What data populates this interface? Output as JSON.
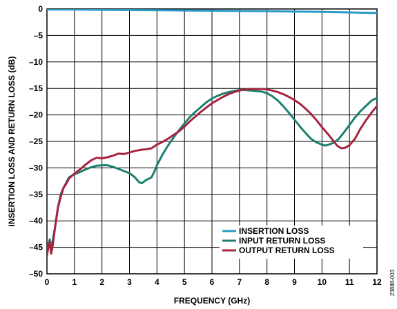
{
  "chart_data": {
    "type": "line",
    "xlabel": "FREQUENCY (GHz)",
    "ylabel": "INSERTION LOSS AND RETURN LOSS (dB)",
    "xlim": [
      0,
      12
    ],
    "ylim": [
      -50,
      0
    ],
    "x_ticks": [
      "0",
      "1",
      "2",
      "3",
      "4",
      "5",
      "6",
      "7",
      "8",
      "9",
      "10",
      "11",
      "12"
    ],
    "y_ticks": [
      "0",
      "–5",
      "–10",
      "–15",
      "–20",
      "–25",
      "–30",
      "–35",
      "–40",
      "–45",
      "–50"
    ],
    "grid": true,
    "legend_position": "bottom-right",
    "figure_id": "23888-003",
    "series": [
      {
        "name": "INSERTION LOSS",
        "color": "#2a9bc4",
        "points": [
          [
            0,
            -0.1
          ],
          [
            1,
            -0.12
          ],
          [
            2,
            -0.15
          ],
          [
            3,
            -0.2
          ],
          [
            4,
            -0.22
          ],
          [
            5,
            -0.28
          ],
          [
            6,
            -0.32
          ],
          [
            7,
            -0.38
          ],
          [
            8,
            -0.42
          ],
          [
            9,
            -0.48
          ],
          [
            10,
            -0.55
          ],
          [
            11,
            -0.65
          ],
          [
            11.5,
            -0.72
          ],
          [
            12,
            -0.75
          ]
        ]
      },
      {
        "name": "INPUT RETURN LOSS",
        "color": "#1d7f6e",
        "points": [
          [
            0,
            -46
          ],
          [
            0.05,
            -44.5
          ],
          [
            0.1,
            -43.5
          ],
          [
            0.15,
            -45
          ],
          [
            0.2,
            -44
          ],
          [
            0.3,
            -41
          ],
          [
            0.4,
            -37.5
          ],
          [
            0.5,
            -35
          ],
          [
            0.6,
            -33.8
          ],
          [
            0.7,
            -32.8
          ],
          [
            0.8,
            -31.8
          ],
          [
            1.0,
            -31.2
          ],
          [
            1.2,
            -30.8
          ],
          [
            1.4,
            -30.3
          ],
          [
            1.6,
            -29.9
          ],
          [
            1.8,
            -29.6
          ],
          [
            2.0,
            -29.5
          ],
          [
            2.2,
            -29.5
          ],
          [
            2.4,
            -29.8
          ],
          [
            2.6,
            -30.2
          ],
          [
            2.8,
            -30.6
          ],
          [
            3.0,
            -31.0
          ],
          [
            3.2,
            -31.8
          ],
          [
            3.35,
            -32.7
          ],
          [
            3.45,
            -32.9
          ],
          [
            3.6,
            -32.3
          ],
          [
            3.8,
            -31.8
          ],
          [
            3.9,
            -30.8
          ],
          [
            4.0,
            -29.5
          ],
          [
            4.2,
            -27.5
          ],
          [
            4.4,
            -25.8
          ],
          [
            4.6,
            -24.3
          ],
          [
            4.8,
            -22.9
          ],
          [
            5.0,
            -21.6
          ],
          [
            5.2,
            -20.4
          ],
          [
            5.4,
            -19.4
          ],
          [
            5.6,
            -18.5
          ],
          [
            5.8,
            -17.6
          ],
          [
            6.0,
            -16.9
          ],
          [
            6.2,
            -16.4
          ],
          [
            6.4,
            -16.0
          ],
          [
            6.6,
            -15.7
          ],
          [
            6.8,
            -15.5
          ],
          [
            7.0,
            -15.3
          ],
          [
            7.2,
            -15.3
          ],
          [
            7.4,
            -15.4
          ],
          [
            7.6,
            -15.5
          ],
          [
            7.8,
            -15.6
          ],
          [
            8.0,
            -15.9
          ],
          [
            8.2,
            -16.5
          ],
          [
            8.4,
            -17.3
          ],
          [
            8.6,
            -18.4
          ],
          [
            8.8,
            -19.6
          ],
          [
            9.0,
            -20.9
          ],
          [
            9.2,
            -22.2
          ],
          [
            9.4,
            -23.4
          ],
          [
            9.6,
            -24.5
          ],
          [
            9.8,
            -25.2
          ],
          [
            10.0,
            -25.6
          ],
          [
            10.1,
            -25.8
          ],
          [
            10.2,
            -25.7
          ],
          [
            10.4,
            -25.3
          ],
          [
            10.6,
            -24.6
          ],
          [
            10.8,
            -23.3
          ],
          [
            11.0,
            -21.9
          ],
          [
            11.2,
            -20.5
          ],
          [
            11.4,
            -19.3
          ],
          [
            11.6,
            -18.3
          ],
          [
            11.8,
            -17.3
          ],
          [
            12.0,
            -16.8
          ]
        ]
      },
      {
        "name": "OUTPUT RETURN LOSS",
        "color": "#a6243e",
        "points": [
          [
            0,
            -46.5
          ],
          [
            0.05,
            -45
          ],
          [
            0.1,
            -44
          ],
          [
            0.15,
            -46.2
          ],
          [
            0.2,
            -45
          ],
          [
            0.3,
            -41
          ],
          [
            0.4,
            -37.5
          ],
          [
            0.5,
            -35.5
          ],
          [
            0.6,
            -33.8
          ],
          [
            0.7,
            -33
          ],
          [
            0.8,
            -32
          ],
          [
            1.0,
            -31.1
          ],
          [
            1.2,
            -30.3
          ],
          [
            1.4,
            -29.4
          ],
          [
            1.6,
            -28.6
          ],
          [
            1.8,
            -28.1
          ],
          [
            2.0,
            -28.2
          ],
          [
            2.2,
            -28.0
          ],
          [
            2.4,
            -27.7
          ],
          [
            2.6,
            -27.3
          ],
          [
            2.8,
            -27.4
          ],
          [
            3.0,
            -27.1
          ],
          [
            3.2,
            -26.8
          ],
          [
            3.4,
            -26.6
          ],
          [
            3.6,
            -26.5
          ],
          [
            3.8,
            -26.3
          ],
          [
            4.0,
            -25.6
          ],
          [
            4.2,
            -25.1
          ],
          [
            4.4,
            -24.5
          ],
          [
            4.6,
            -23.8
          ],
          [
            4.8,
            -23.1
          ],
          [
            5.0,
            -22.2
          ],
          [
            5.2,
            -21.2
          ],
          [
            5.4,
            -20.3
          ],
          [
            5.6,
            -19.4
          ],
          [
            5.8,
            -18.6
          ],
          [
            6.0,
            -17.8
          ],
          [
            6.2,
            -17.2
          ],
          [
            6.4,
            -16.6
          ],
          [
            6.6,
            -16.1
          ],
          [
            6.8,
            -15.7
          ],
          [
            7.0,
            -15.4
          ],
          [
            7.2,
            -15.2
          ],
          [
            7.4,
            -15.1
          ],
          [
            7.6,
            -15.1
          ],
          [
            7.8,
            -15.1
          ],
          [
            8.0,
            -15.2
          ],
          [
            8.2,
            -15.4
          ],
          [
            8.4,
            -15.7
          ],
          [
            8.6,
            -16.1
          ],
          [
            8.8,
            -16.6
          ],
          [
            9.0,
            -17.2
          ],
          [
            9.2,
            -17.9
          ],
          [
            9.4,
            -18.8
          ],
          [
            9.6,
            -19.8
          ],
          [
            9.8,
            -21.0
          ],
          [
            10.0,
            -22.3
          ],
          [
            10.2,
            -23.5
          ],
          [
            10.4,
            -24.8
          ],
          [
            10.55,
            -25.8
          ],
          [
            10.7,
            -26.3
          ],
          [
            10.85,
            -26.2
          ],
          [
            11.0,
            -25.7
          ],
          [
            11.2,
            -24.5
          ],
          [
            11.4,
            -22.6
          ],
          [
            11.6,
            -21.0
          ],
          [
            11.8,
            -19.6
          ],
          [
            12.0,
            -18.3
          ]
        ]
      }
    ]
  }
}
